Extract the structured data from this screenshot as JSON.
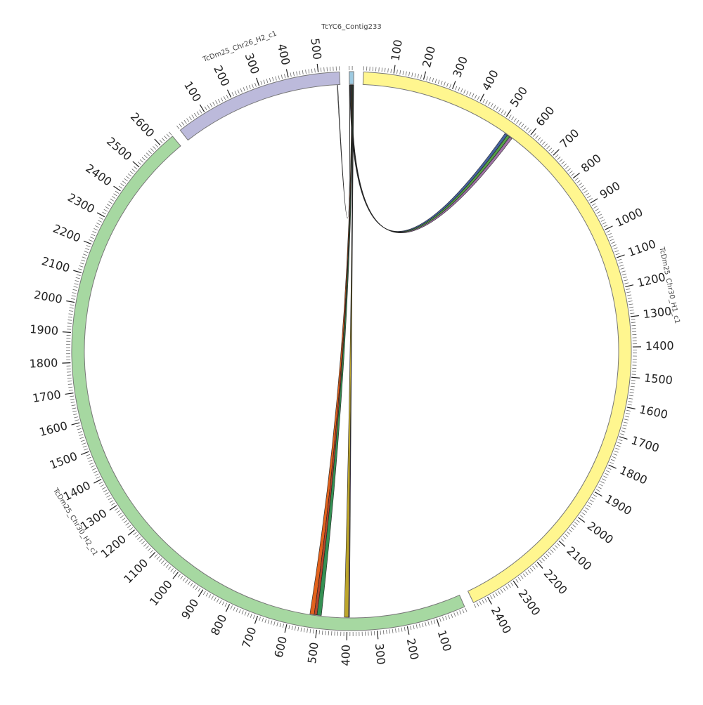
{
  "chart_data": {
    "type": "circos",
    "minor_tick_interval": 10,
    "segments": [
      {
        "name": "TcYC6_Contig233",
        "length": 15,
        "color": "#9ecae1",
        "ticks": []
      },
      {
        "name": "TcDm25_Chr30_H1_c1",
        "length": 2450,
        "color": "#fff68f",
        "ticks": [
          100,
          200,
          300,
          400,
          500,
          600,
          700,
          800,
          900,
          1000,
          1100,
          1200,
          1300,
          1400,
          1500,
          1600,
          1700,
          1800,
          1900,
          2000,
          2100,
          2200,
          2300,
          2400
        ]
      },
      {
        "name": "TcDm25_Chr30_H2_c1",
        "length": 2650,
        "color": "#a6d8a1",
        "ticks": [
          100,
          200,
          300,
          400,
          500,
          600,
          700,
          800,
          900,
          1000,
          1100,
          1200,
          1300,
          1400,
          1500,
          1600,
          1700,
          1800,
          1900,
          2000,
          2100,
          2200,
          2300,
          2400,
          2500,
          2600
        ]
      },
      {
        "name": "TcDm25_Chr26_H2_c1",
        "length": 570,
        "color": "#bcbadb",
        "ticks": [
          100,
          200,
          300,
          400,
          500
        ]
      }
    ],
    "links": [
      {
        "source": {
          "segment": 0,
          "start": 2,
          "end": 4
        },
        "target": {
          "segment": 1,
          "start": 528,
          "end": 538
        },
        "color": "#3c5a9a"
      },
      {
        "source": {
          "segment": 0,
          "start": 4,
          "end": 6
        },
        "target": {
          "segment": 1,
          "start": 538,
          "end": 548
        },
        "color": "#4a9a3c"
      },
      {
        "source": {
          "segment": 0,
          "start": 6,
          "end": 8
        },
        "target": {
          "segment": 1,
          "start": 548,
          "end": 558
        },
        "color": "#9a6aa0"
      },
      {
        "source": {
          "segment": 0,
          "start": 8,
          "end": 10
        },
        "target": {
          "segment": 2,
          "start": 515,
          "end": 530
        },
        "color": "#e05a10"
      },
      {
        "source": {
          "segment": 0,
          "start": 10,
          "end": 11
        },
        "target": {
          "segment": 2,
          "start": 505,
          "end": 515
        },
        "color": "#b03a20"
      },
      {
        "source": {
          "segment": 0,
          "start": 11,
          "end": 13
        },
        "target": {
          "segment": 2,
          "start": 490,
          "end": 505
        },
        "color": "#2a8a4a"
      },
      {
        "source": {
          "segment": 0,
          "start": 13,
          "end": 14
        },
        "target": {
          "segment": 2,
          "start": 395,
          "end": 410
        },
        "color": "#b8a020"
      },
      {
        "source": {
          "segment": 0,
          "start": 14,
          "end": 15
        },
        "target": {
          "segment": 2,
          "start": 392,
          "end": 395
        },
        "color": "#7a5aa0"
      },
      {
        "source": {
          "segment": 0,
          "start": 0,
          "end": 1
        },
        "target": {
          "segment": 3,
          "start": 560,
          "end": 562
        },
        "color": "#ffffff"
      }
    ]
  }
}
